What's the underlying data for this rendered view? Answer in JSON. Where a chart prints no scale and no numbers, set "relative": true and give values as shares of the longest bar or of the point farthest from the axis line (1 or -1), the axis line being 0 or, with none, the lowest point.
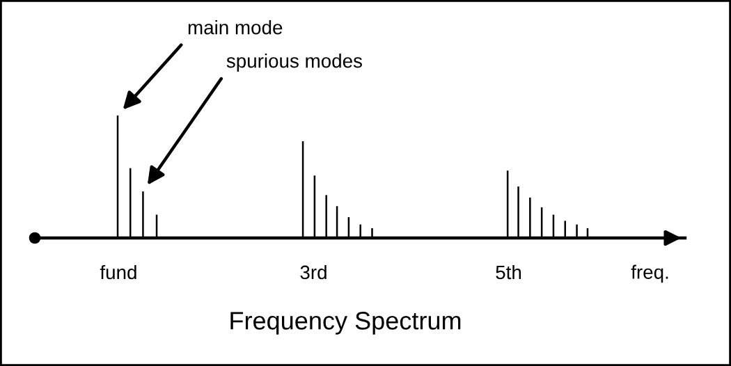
{
  "chart_data": {
    "type": "bar",
    "relative": true,
    "title": "Frequency Spectrum",
    "xlabel": "freq.",
    "x": [
      0.99,
      1.12,
      1.25,
      1.39,
      2.89,
      3.01,
      3.13,
      3.24,
      3.36,
      3.48,
      3.6,
      4.99,
      5.1,
      5.22,
      5.34,
      5.46,
      5.58,
      5.7,
      5.81
    ],
    "values": [
      1,
      0.57,
      0.38,
      0.19,
      0.79,
      0.51,
      0.35,
      0.26,
      0.17,
      0.11,
      0.08,
      0.55,
      0.42,
      0.33,
      0.25,
      0.19,
      0.14,
      0.11,
      0.08
    ],
    "color": "#000000",
    "xlim": [
      0.14,
      6.81
    ],
    "xticks": [
      {
        "value": 1,
        "label": "fund"
      },
      {
        "value": 3,
        "label": "3rd"
      },
      {
        "value": 5,
        "label": "5th"
      }
    ],
    "grid": false,
    "annotations": [
      {
        "text": "main mode",
        "x": 0.99,
        "y": 1
      },
      {
        "text": "spurious modes",
        "x": 1.25,
        "y": 0.38
      }
    ]
  }
}
